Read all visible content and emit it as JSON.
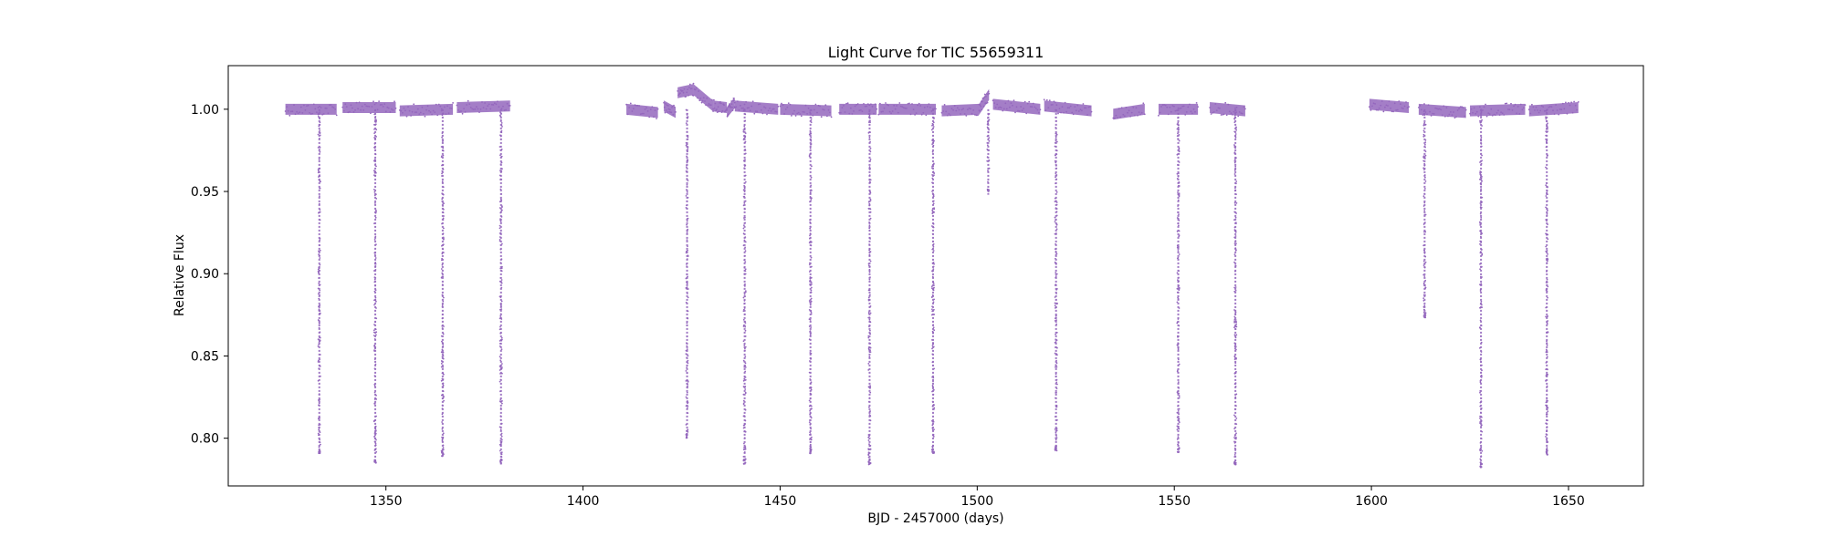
{
  "chart_data": {
    "type": "scatter",
    "title": "Light Curve for TIC 55659311",
    "xlabel": "BJD - 2457000 (days)",
    "ylabel": "Relative Flux",
    "xlim": [
      1310,
      1669
    ],
    "ylim": [
      0.771,
      1.0265
    ],
    "xticks": [
      1350,
      1400,
      1450,
      1500,
      1550,
      1600,
      1650
    ],
    "yticks": [
      0.8,
      0.85,
      0.9,
      0.95,
      1.0
    ],
    "grid": false,
    "legend": "none",
    "point_color": "#9467bd",
    "segments": [
      {
        "x": [
          1324.5,
          1337.5
        ],
        "y": [
          1.0,
          1.0
        ]
      },
      {
        "x": [
          1339.0,
          1352.5
        ],
        "y": [
          1.001,
          1.001
        ]
      },
      {
        "x": [
          1353.5,
          1367.0
        ],
        "y": [
          0.999,
          1.0
        ]
      },
      {
        "x": [
          1368.0,
          1381.5
        ],
        "y": [
          1.001,
          1.002
        ]
      },
      {
        "x": [
          1411.0,
          1419.0
        ],
        "y": [
          1.0,
          0.998
        ]
      },
      {
        "x": [
          1420.5,
          1423.5
        ],
        "y": [
          1.002,
          0.998
        ]
      },
      {
        "x": [
          1424.0,
          1428.0
        ],
        "y": [
          1.01,
          1.012
        ]
      },
      {
        "x": [
          1428.0,
          1433.0
        ],
        "y": [
          1.012,
          1.002
        ]
      },
      {
        "x": [
          1433.0,
          1436.5
        ],
        "y": [
          1.002,
          1.001
        ]
      },
      {
        "x": [
          1436.5,
          1438.5
        ],
        "y": [
          0.998,
          1.004
        ]
      },
      {
        "x": [
          1438.5,
          1449.5
        ],
        "y": [
          1.002,
          1.0
        ]
      },
      {
        "x": [
          1450.0,
          1463.0
        ],
        "y": [
          1.0,
          0.999
        ]
      },
      {
        "x": [
          1465.0,
          1474.5
        ],
        "y": [
          1.0,
          1.0
        ]
      },
      {
        "x": [
          1475.0,
          1489.5
        ],
        "y": [
          1.0,
          1.0
        ]
      },
      {
        "x": [
          1491.0,
          1500.5
        ],
        "y": [
          0.999,
          1.0
        ]
      },
      {
        "x": [
          1500.5,
          1503.0
        ],
        "y": [
          1.0,
          1.009
        ]
      },
      {
        "x": [
          1504.0,
          1516.0
        ],
        "y": [
          1.003,
          1.0
        ]
      },
      {
        "x": [
          1517.0,
          1529.0
        ],
        "y": [
          1.002,
          0.999
        ]
      },
      {
        "x": [
          1534.5,
          1542.5
        ],
        "y": [
          0.997,
          1.0
        ]
      },
      {
        "x": [
          1546.0,
          1556.0
        ],
        "y": [
          1.0,
          1.0
        ]
      },
      {
        "x": [
          1559.0,
          1568.0
        ],
        "y": [
          1.001,
          0.999
        ]
      },
      {
        "x": [
          1599.5,
          1609.5
        ],
        "y": [
          1.003,
          1.001
        ]
      },
      {
        "x": [
          1612.0,
          1624.0
        ],
        "y": [
          1.0,
          0.998
        ]
      },
      {
        "x": [
          1625.0,
          1639.0
        ],
        "y": [
          0.999,
          1.0
        ]
      },
      {
        "x": [
          1640.0,
          1652.5
        ],
        "y": [
          0.999,
          1.001
        ]
      }
    ],
    "dips": [
      {
        "x": 1333.1,
        "min": 0.79
      },
      {
        "x": 1347.3,
        "min": 0.785
      },
      {
        "x": 1364.4,
        "min": 0.789
      },
      {
        "x": 1379.2,
        "min": 0.784
      },
      {
        "x": 1426.4,
        "min": 0.8
      },
      {
        "x": 1441.0,
        "min": 0.784
      },
      {
        "x": 1457.7,
        "min": 0.79
      },
      {
        "x": 1472.7,
        "min": 0.784
      },
      {
        "x": 1488.8,
        "min": 0.79
      },
      {
        "x": 1502.8,
        "min": 0.948
      },
      {
        "x": 1520.0,
        "min": 0.792
      },
      {
        "x": 1551.0,
        "min": 0.791
      },
      {
        "x": 1565.5,
        "min": 0.783
      },
      {
        "x": 1613.5,
        "min": 0.873
      },
      {
        "x": 1627.8,
        "min": 0.782
      },
      {
        "x": 1644.5,
        "min": 0.79
      }
    ]
  }
}
